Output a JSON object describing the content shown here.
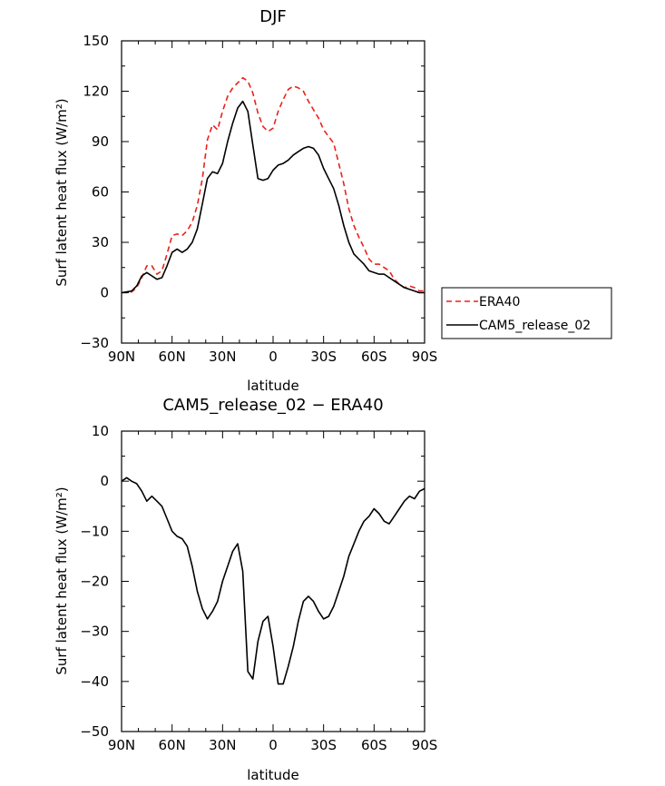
{
  "chart_data": [
    {
      "type": "line",
      "title": "DJF",
      "xlabel": "latitude",
      "ylabel": "Surf latent heat flux (W/m²)",
      "xlim": [
        -90,
        90
      ],
      "ylim": [
        -30,
        150
      ],
      "xticks": [
        -90,
        -60,
        -30,
        0,
        30,
        60,
        90
      ],
      "xtick_labels": [
        "90N",
        "60N",
        "30N",
        "0",
        "30S",
        "60S",
        "90S"
      ],
      "yticks": [
        -30,
        0,
        30,
        60,
        90,
        120,
        150
      ],
      "ytick_labels": [
        "−30",
        "0",
        "30",
        "60",
        "90",
        "120",
        "150"
      ],
      "grid": false,
      "legend": "right",
      "series": [
        {
          "name": "ERA40",
          "color": "#e8221a",
          "dash": "dashed",
          "x": [
            -90,
            -87,
            -84,
            -81,
            -78,
            -75,
            -72,
            -69,
            -66,
            -63,
            -60,
            -57,
            -54,
            -51,
            -48,
            -45,
            -42,
            -39,
            -36,
            -33,
            -30,
            -27,
            -24,
            -21,
            -18,
            -15,
            -12,
            -9,
            -6,
            -3,
            0,
            3,
            6,
            9,
            12,
            15,
            18,
            21,
            24,
            27,
            30,
            33,
            36,
            39,
            42,
            45,
            48,
            51,
            54,
            57,
            60,
            63,
            66,
            69,
            72,
            75,
            78,
            81,
            84,
            87,
            90
          ],
          "y": [
            0,
            0,
            0.5,
            3,
            9,
            16,
            16,
            11,
            13,
            23,
            34,
            35,
            34,
            37,
            42,
            52,
            68,
            91,
            100,
            97,
            108,
            117,
            122,
            125,
            128,
            126,
            119,
            107,
            99,
            96,
            98,
            108,
            115,
            121,
            123,
            122,
            120,
            114,
            109,
            104,
            97,
            93,
            89,
            77,
            65,
            50,
            40,
            33,
            27,
            20,
            17,
            17,
            15,
            13,
            8,
            5,
            3,
            4,
            3,
            1,
            1
          ]
        },
        {
          "name": "CAM5_release_02",
          "color": "#000000",
          "dash": "solid",
          "x": [
            -90,
            -87,
            -84,
            -81,
            -78,
            -75,
            -72,
            -69,
            -66,
            -63,
            -60,
            -57,
            -54,
            -51,
            -48,
            -45,
            -42,
            -39,
            -36,
            -33,
            -30,
            -27,
            -24,
            -21,
            -18,
            -15,
            -12,
            -9,
            -6,
            -3,
            0,
            3,
            6,
            9,
            12,
            15,
            18,
            21,
            24,
            27,
            30,
            33,
            36,
            39,
            42,
            45,
            48,
            51,
            54,
            57,
            60,
            63,
            66,
            69,
            72,
            75,
            78,
            81,
            84,
            87,
            90
          ],
          "y": [
            0,
            0.5,
            1,
            4,
            10,
            12,
            10,
            8,
            9,
            16,
            24,
            26,
            24,
            26,
            30,
            38,
            53,
            68,
            72,
            71,
            77,
            90,
            101,
            110,
            114,
            108,
            88,
            68,
            67,
            68,
            73,
            76,
            77,
            79,
            82,
            84,
            86,
            87,
            86,
            82,
            74,
            68,
            62,
            52,
            40,
            30,
            23,
            20,
            17,
            13,
            12,
            11,
            11,
            9,
            7,
            5,
            3,
            2,
            1,
            0,
            0
          ]
        }
      ]
    },
    {
      "type": "line",
      "title": "CAM5_release_02 − ERA40",
      "xlabel": "latitude",
      "ylabel": "Surf latent heat flux (W/m²)",
      "xlim": [
        -90,
        90
      ],
      "ylim": [
        -50,
        10
      ],
      "xticks": [
        -90,
        -60,
        -30,
        0,
        30,
        60,
        90
      ],
      "xtick_labels": [
        "90N",
        "60N",
        "30N",
        "0",
        "30S",
        "60S",
        "90S"
      ],
      "yticks": [
        -50,
        -40,
        -30,
        -20,
        -10,
        0,
        10
      ],
      "ytick_labels": [
        "−50",
        "−40",
        "−30",
        "−20",
        "−10",
        "0",
        "10"
      ],
      "grid": false,
      "series": [
        {
          "color": "#000000",
          "dash": "solid",
          "x": [
            -90,
            -87,
            -84,
            -81,
            -78,
            -75,
            -72,
            -69,
            -66,
            -63,
            -60,
            -57,
            -54,
            -51,
            -48,
            -45,
            -42,
            -39,
            -36,
            -33,
            -30,
            -27,
            -24,
            -21,
            -18,
            -15,
            -12,
            -9,
            -6,
            -3,
            0,
            3,
            6,
            9,
            12,
            15,
            18,
            21,
            24,
            27,
            30,
            33,
            36,
            39,
            42,
            45,
            48,
            51,
            54,
            57,
            60,
            63,
            66,
            69,
            72,
            75,
            78,
            81,
            84,
            87,
            90
          ],
          "y": [
            0,
            0.7,
            0,
            -0.5,
            -2,
            -4,
            -3,
            -4,
            -5,
            -7.5,
            -10,
            -11,
            -11.5,
            -13,
            -17,
            -22,
            -25.5,
            -27.5,
            -26,
            -24,
            -20,
            -17,
            -14,
            -12.5,
            -18,
            -38,
            -39.5,
            -32,
            -28,
            -27,
            -33,
            -40.5,
            -40.5,
            -37,
            -33,
            -28,
            -24,
            -23,
            -24,
            -26,
            -27.5,
            -27,
            -25,
            -22,
            -19,
            -15,
            -12.5,
            -10,
            -8,
            -7,
            -5.5,
            -6.5,
            -8,
            -8.5,
            -7,
            -5.5,
            -4,
            -3,
            -3.5,
            -2,
            -1.5
          ]
        }
      ]
    }
  ]
}
